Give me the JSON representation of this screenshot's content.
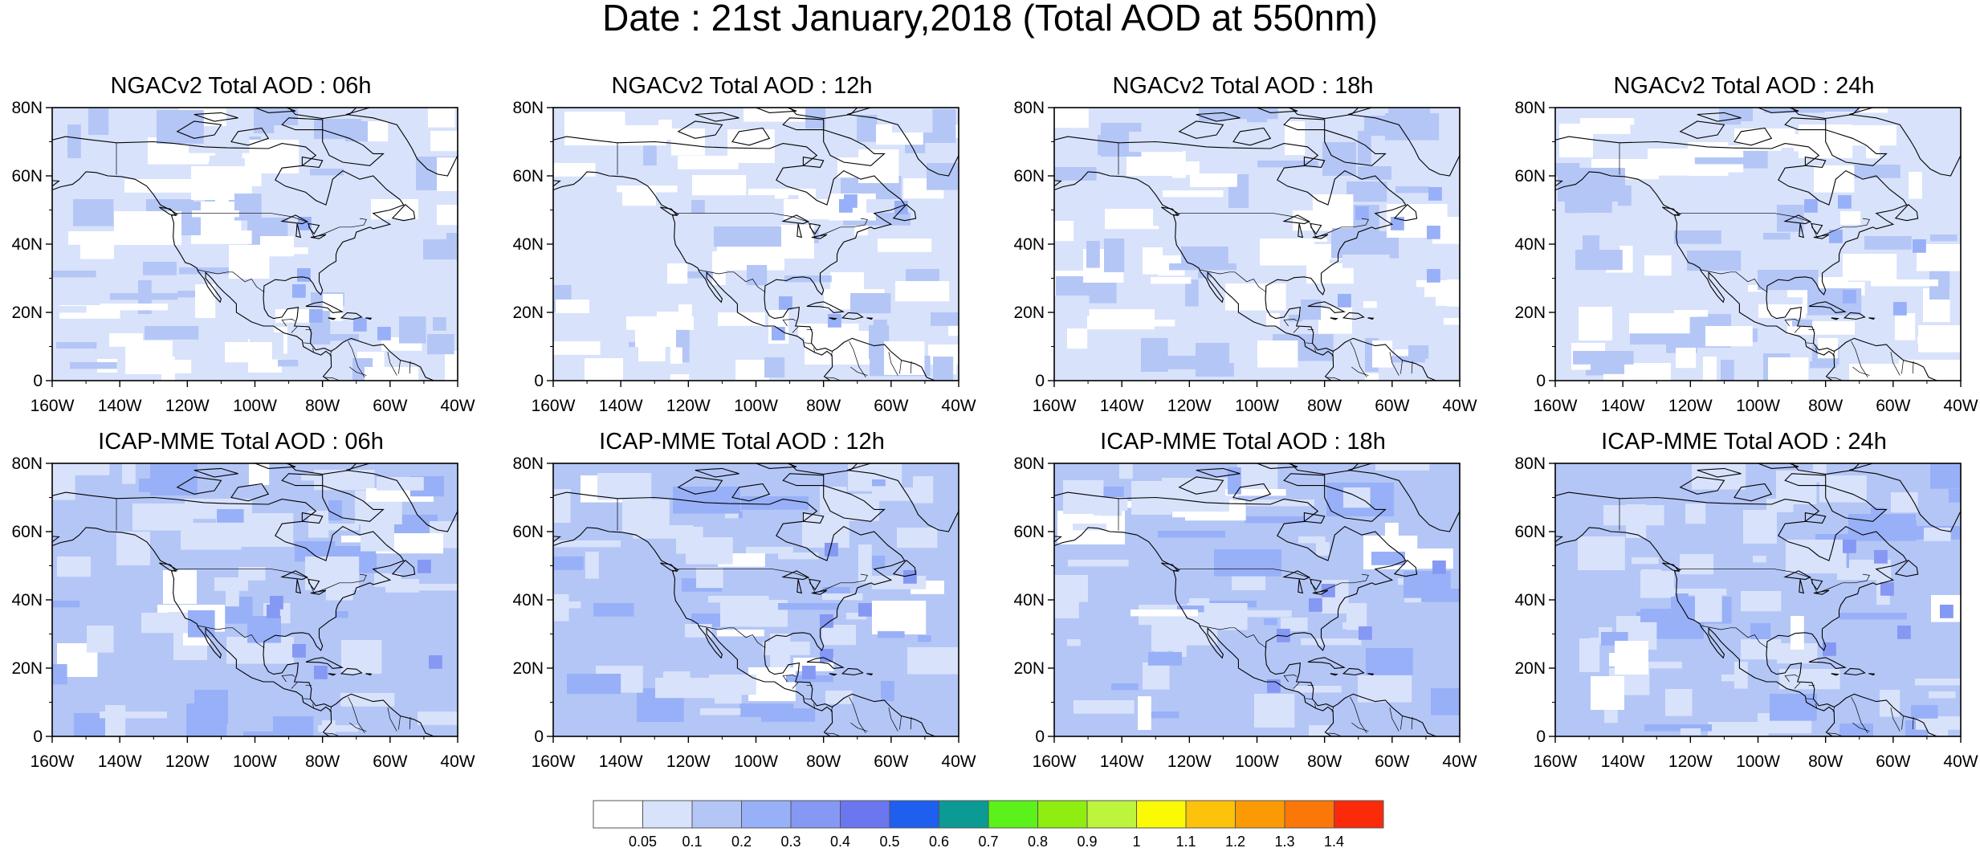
{
  "title": "Date : 21st January,2018 (Total AOD at 550nm)",
  "axes": {
    "lon_labels": [
      "160W",
      "140W",
      "120W",
      "100W",
      "80W",
      "60W",
      "40W"
    ],
    "lat_labels": [
      "0",
      "20N",
      "40N",
      "60N",
      "80N"
    ],
    "lon_range": [
      -160,
      -40
    ],
    "lat_range": [
      0,
      80
    ]
  },
  "panels": [
    {
      "title": "NGACv2 Total AOD : 06h",
      "model": "NGACv2",
      "hour": "06h",
      "dominant_aod": 0.1
    },
    {
      "title": "NGACv2 Total AOD : 12h",
      "model": "NGACv2",
      "hour": "12h",
      "dominant_aod": 0.1
    },
    {
      "title": "NGACv2 Total AOD : 18h",
      "model": "NGACv2",
      "hour": "18h",
      "dominant_aod": 0.1
    },
    {
      "title": "NGACv2 Total AOD : 24h",
      "model": "NGACv2",
      "hour": "24h",
      "dominant_aod": 0.1
    },
    {
      "title": "ICAP-MME Total AOD : 06h",
      "model": "ICAP-MME",
      "hour": "06h",
      "dominant_aod": 0.2
    },
    {
      "title": "ICAP-MME Total AOD : 12h",
      "model": "ICAP-MME",
      "hour": "12h",
      "dominant_aod": 0.2
    },
    {
      "title": "ICAP-MME Total AOD : 18h",
      "model": "ICAP-MME",
      "hour": "18h",
      "dominant_aod": 0.2
    },
    {
      "title": "ICAP-MME Total AOD : 24h",
      "model": "ICAP-MME",
      "hour": "24h",
      "dominant_aod": 0.2
    }
  ],
  "colorbar": {
    "labels": [
      "0.05",
      "0.1",
      "0.2",
      "0.3",
      "0.4",
      "0.5",
      "0.6",
      "0.7",
      "0.8",
      "0.9",
      "1",
      "1.1",
      "1.2",
      "1.3",
      "1.4"
    ],
    "colors": [
      "#ffffff",
      "#d8e2fb",
      "#b4c6f6",
      "#98b0f7",
      "#8598f4",
      "#6a77ee",
      "#1e5ff0",
      "#0c9a94",
      "#5af21a",
      "#8fed10",
      "#bdf53d",
      "#fafa05",
      "#fdc20a",
      "#fb9a05",
      "#fa7708",
      "#fa2a0a"
    ]
  },
  "colors": {
    "ocean_light": "#d8e2fb",
    "ocean_mid": "#b4c6f6",
    "land": "#ffffff",
    "coast": "#000000"
  }
}
